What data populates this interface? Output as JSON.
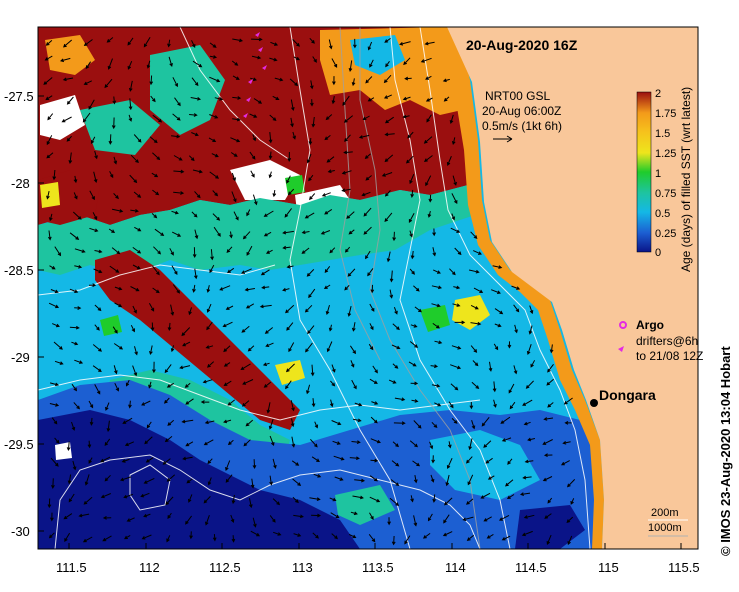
{
  "title": "20-Aug-2020 16Z",
  "current_legend": {
    "line1": "NRT00 GSL",
    "line2": "20-Aug 06:00Z",
    "line3": "0.5m/s (1kt 6h)"
  },
  "colorbar": {
    "title": "Age (days) of filled SST (wrt latest)",
    "ticks": [
      "2",
      "1.75",
      "1.5",
      "1.25",
      "1",
      "0.75",
      "0.5",
      "0.25",
      "0"
    ]
  },
  "argo_legend": {
    "argo_label": "Argo",
    "drifters_line1": "drifters@6h",
    "drifters_line2": "to 21/08 12Z"
  },
  "place": {
    "name": "Dongara"
  },
  "depth_legend": {
    "a": "200m",
    "b": "1000m"
  },
  "credit": "© IMOS 23-Aug-2020 13:04 Hobart",
  "axes": {
    "lat_ticks": [
      "-27.5",
      "-28",
      "-28.5",
      "-29",
      "-29.5",
      "-30"
    ],
    "lon_ticks": [
      "111.5",
      "112",
      "112.5",
      "113",
      "113.5",
      "114",
      "114.5",
      "115",
      "115.5"
    ]
  },
  "colors": {
    "land": "#f9c79a",
    "age_2": "#9b0f0f",
    "age_175": "#f39a1a",
    "age_125": "#eee51c",
    "age_1": "#1fcc2b",
    "age_075": "#1ec4a0",
    "age_05": "#14b8e6",
    "age_025": "#1c5fd2",
    "age_0": "#0a1488",
    "argo": "#e32be3"
  }
}
